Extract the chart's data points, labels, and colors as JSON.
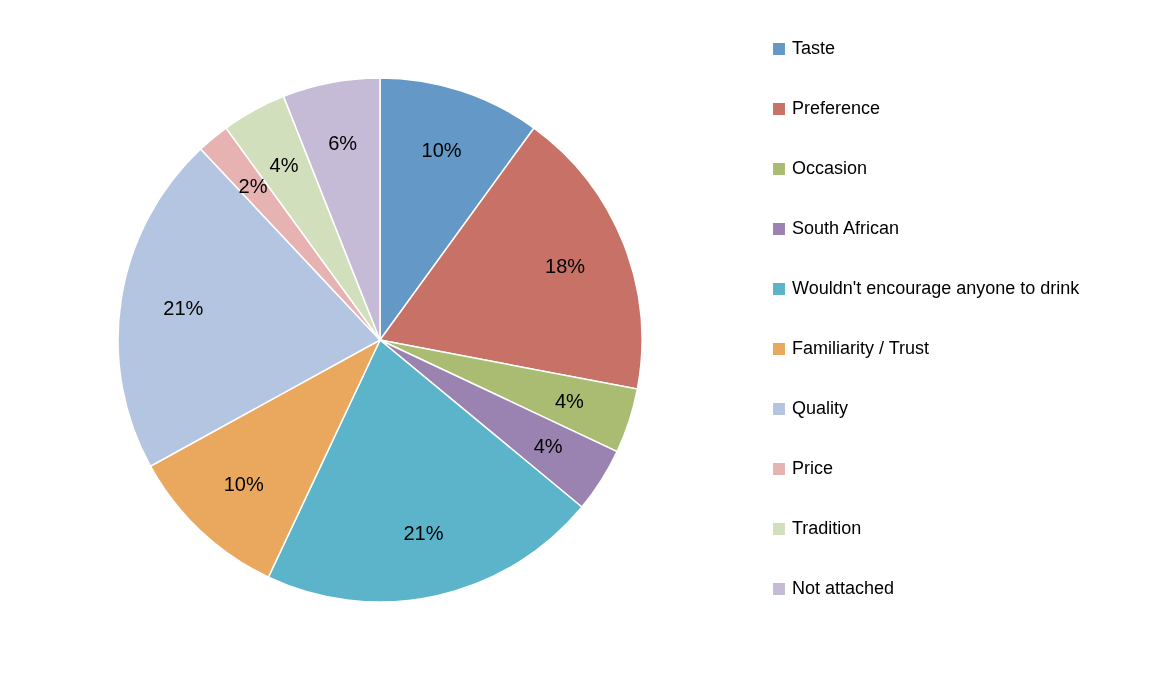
{
  "chart_data": {
    "type": "pie",
    "categories": [
      "Taste",
      "Preference",
      "Occasion",
      "South African",
      "Wouldn't encourage anyone to drink",
      "Familiarity / Trust",
      "Quality",
      "Price",
      "Tradition",
      "Not attached"
    ],
    "values": [
      10,
      18,
      4,
      4,
      21,
      10,
      21,
      2,
      4,
      6
    ],
    "value_labels": [
      "10%",
      "18%",
      "4%",
      "4%",
      "21%",
      "10%",
      "21%",
      "2%",
      "4%",
      "6%"
    ],
    "colors": [
      "#6498c6",
      "#c87167",
      "#a9bc72",
      "#9a83b1",
      "#5bb4c9",
      "#eaa75e",
      "#b3c5e1",
      "#e6b3b2",
      "#d2dfbd",
      "#c5bbd6"
    ],
    "legend": "right"
  }
}
